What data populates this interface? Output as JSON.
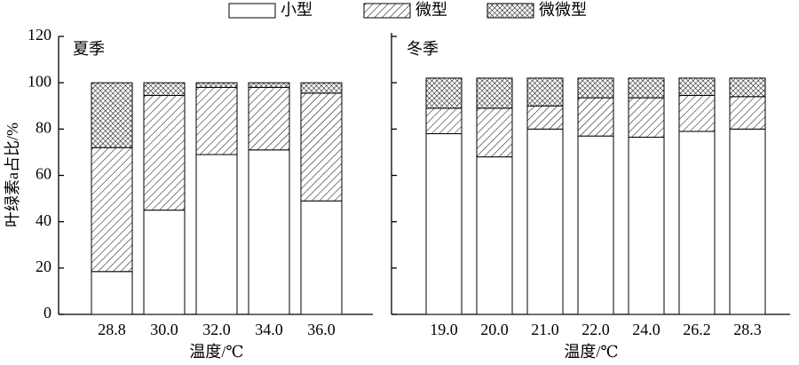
{
  "chart_data": [
    {
      "type": "bar",
      "stacked": true,
      "title": "夏季",
      "y_label": "叶绿素a占比/%",
      "x_label": "温度/℃",
      "categories": [
        "28.8",
        "30.0",
        "32.0",
        "34.0",
        "36.0"
      ],
      "series": [
        {
          "name": "小型",
          "pattern": "none",
          "values": [
            18.5,
            45,
            69,
            71,
            49
          ]
        },
        {
          "name": "微型",
          "pattern": "hatch",
          "values": [
            53.5,
            49.5,
            29,
            27,
            46.5
          ]
        },
        {
          "name": "微微型",
          "pattern": "cross",
          "values": [
            28,
            5.5,
            2,
            2,
            4.5
          ]
        }
      ],
      "ylim": [
        0,
        120
      ],
      "yticks": [
        0,
        20,
        40,
        60,
        80,
        100,
        120
      ]
    },
    {
      "type": "bar",
      "stacked": true,
      "title": "冬季",
      "x_label": "温度/℃",
      "categories": [
        "19.0",
        "20.0",
        "21.0",
        "22.0",
        "24.0",
        "26.2",
        "28.3"
      ],
      "series": [
        {
          "pattern": "none",
          "values": [
            78,
            68,
            80,
            77,
            76.5,
            79,
            80
          ]
        },
        {
          "pattern": "hatch",
          "values": [
            11,
            21,
            10,
            16.5,
            17,
            15.5,
            14
          ]
        },
        {
          "pattern": "cross",
          "values": [
            13,
            13,
            12,
            8.5,
            8.5,
            7.5,
            8
          ]
        }
      ],
      "ylim": [
        0,
        120
      ],
      "yticks": [
        0,
        20,
        40,
        60,
        80,
        100,
        120
      ]
    }
  ]
}
